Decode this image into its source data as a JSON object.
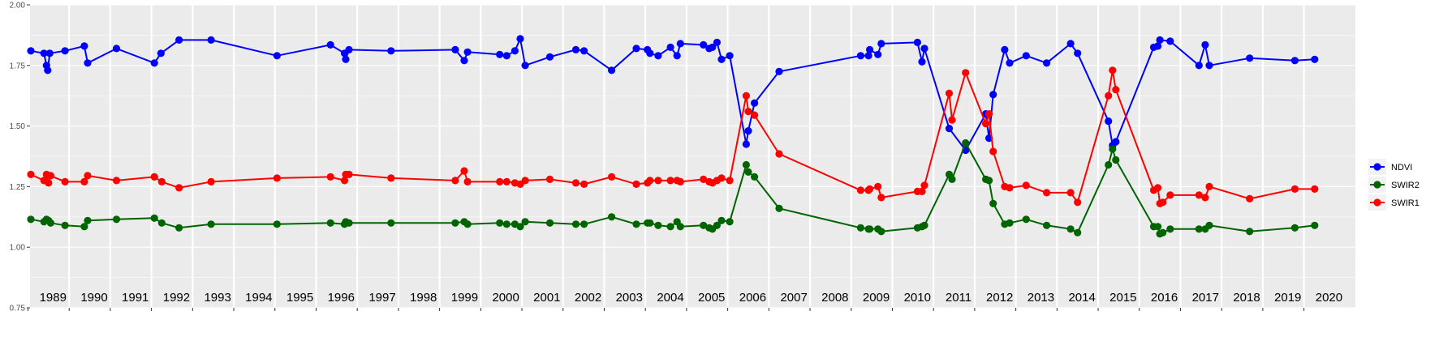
{
  "chart_data": {
    "type": "line",
    "title": "",
    "xlabel": "",
    "ylabel": "",
    "ylim": [
      0.75,
      2.0
    ],
    "yticks": [
      "0.75",
      "1.00",
      "1.25",
      "1.50",
      "1.75",
      "2.00"
    ],
    "xlim": [
      1988.6,
      2020.8
    ],
    "year_labels": [
      "1989",
      "1990",
      "1991",
      "1992",
      "1993",
      "1994",
      "1995",
      "1996",
      "1997",
      "1998",
      "1999",
      "2000",
      "2001",
      "2002",
      "2003",
      "2004",
      "2005",
      "2006",
      "2007",
      "2008",
      "2009",
      "2010",
      "2011",
      "2012",
      "2013",
      "2014",
      "2015",
      "2016",
      "2017",
      "2018",
      "2019",
      "2020"
    ],
    "grid": true,
    "legend_position": "right",
    "series": [
      {
        "name": "NDVI",
        "color": "#0000ff",
        "points": [
          [
            1988.62,
            1.81
          ],
          [
            1988.94,
            1.8
          ],
          [
            1989.0,
            1.75
          ],
          [
            1989.03,
            1.73
          ],
          [
            1989.08,
            1.8
          ],
          [
            1989.45,
            1.81
          ],
          [
            1989.92,
            1.83
          ],
          [
            1990.0,
            1.76
          ],
          [
            1990.7,
            1.82
          ],
          [
            1991.62,
            1.76
          ],
          [
            1991.78,
            1.8
          ],
          [
            1992.22,
            1.855
          ],
          [
            1993.0,
            1.855
          ],
          [
            1994.6,
            1.79
          ],
          [
            1995.9,
            1.835
          ],
          [
            1996.24,
            1.8
          ],
          [
            1996.27,
            1.775
          ],
          [
            1996.35,
            1.815
          ],
          [
            1997.37,
            1.81
          ],
          [
            1998.93,
            1.815
          ],
          [
            1999.15,
            1.77
          ],
          [
            1999.23,
            1.805
          ],
          [
            2000.01,
            1.795
          ],
          [
            2000.18,
            1.79
          ],
          [
            2000.38,
            1.81
          ],
          [
            2000.51,
            1.86
          ],
          [
            2000.63,
            1.75
          ],
          [
            2001.23,
            1.785
          ],
          [
            2001.86,
            1.815
          ],
          [
            2002.06,
            1.81
          ],
          [
            2002.73,
            1.73
          ],
          [
            2003.33,
            1.82
          ],
          [
            2003.6,
            1.815
          ],
          [
            2003.66,
            1.8
          ],
          [
            2003.86,
            1.79
          ],
          [
            2004.16,
            1.825
          ],
          [
            2004.32,
            1.79
          ],
          [
            2004.4,
            1.84
          ],
          [
            2004.96,
            1.835
          ],
          [
            2005.1,
            1.82
          ],
          [
            2005.18,
            1.825
          ],
          [
            2005.29,
            1.845
          ],
          [
            2005.4,
            1.775
          ],
          [
            2005.6,
            1.79
          ],
          [
            2006.0,
            1.425
          ],
          [
            2006.05,
            1.48
          ],
          [
            2006.2,
            1.595
          ],
          [
            2006.8,
            1.725
          ],
          [
            2008.78,
            1.79
          ],
          [
            2008.97,
            1.79
          ],
          [
            2009.0,
            1.815
          ],
          [
            2009.2,
            1.795
          ],
          [
            2009.28,
            1.84
          ],
          [
            2010.16,
            1.845
          ],
          [
            2010.27,
            1.765
          ],
          [
            2010.33,
            1.82
          ],
          [
            2010.93,
            1.49
          ],
          [
            2011.33,
            1.4
          ],
          [
            2011.82,
            1.55
          ],
          [
            2011.9,
            1.45
          ],
          [
            2012.0,
            1.63
          ],
          [
            2012.28,
            1.815
          ],
          [
            2012.4,
            1.76
          ],
          [
            2012.8,
            1.79
          ],
          [
            2013.3,
            1.76
          ],
          [
            2013.88,
            1.84
          ],
          [
            2014.05,
            1.8
          ],
          [
            2014.8,
            1.52
          ],
          [
            2014.9,
            1.42
          ],
          [
            2014.98,
            1.435
          ],
          [
            2015.9,
            1.825
          ],
          [
            2016.0,
            1.83
          ],
          [
            2016.05,
            1.855
          ],
          [
            2016.3,
            1.85
          ],
          [
            2017.0,
            1.75
          ],
          [
            2017.15,
            1.835
          ],
          [
            2017.25,
            1.75
          ],
          [
            2018.23,
            1.78
          ],
          [
            2019.33,
            1.77
          ],
          [
            2019.81,
            1.775
          ]
        ]
      },
      {
        "name": "SWIR2",
        "color": "#006400",
        "points": [
          [
            1988.62,
            1.115
          ],
          [
            1988.94,
            1.105
          ],
          [
            1989.0,
            1.115
          ],
          [
            1989.05,
            1.11
          ],
          [
            1989.1,
            1.1
          ],
          [
            1989.45,
            1.09
          ],
          [
            1989.92,
            1.085
          ],
          [
            1990.0,
            1.11
          ],
          [
            1990.7,
            1.115
          ],
          [
            1991.62,
            1.12
          ],
          [
            1991.8,
            1.1
          ],
          [
            1992.22,
            1.08
          ],
          [
            1993.0,
            1.095
          ],
          [
            1994.6,
            1.095
          ],
          [
            1995.9,
            1.1
          ],
          [
            1996.24,
            1.095
          ],
          [
            1996.27,
            1.105
          ],
          [
            1996.35,
            1.1
          ],
          [
            1997.37,
            1.1
          ],
          [
            1998.93,
            1.1
          ],
          [
            1999.15,
            1.105
          ],
          [
            1999.23,
            1.095
          ],
          [
            2000.01,
            1.1
          ],
          [
            2000.18,
            1.095
          ],
          [
            2000.38,
            1.095
          ],
          [
            2000.51,
            1.085
          ],
          [
            2000.63,
            1.105
          ],
          [
            2001.23,
            1.1
          ],
          [
            2001.86,
            1.095
          ],
          [
            2002.06,
            1.095
          ],
          [
            2002.73,
            1.125
          ],
          [
            2003.33,
            1.095
          ],
          [
            2003.6,
            1.1
          ],
          [
            2003.66,
            1.1
          ],
          [
            2003.86,
            1.09
          ],
          [
            2004.16,
            1.085
          ],
          [
            2004.32,
            1.105
          ],
          [
            2004.4,
            1.085
          ],
          [
            2004.96,
            1.09
          ],
          [
            2005.1,
            1.08
          ],
          [
            2005.18,
            1.075
          ],
          [
            2005.29,
            1.09
          ],
          [
            2005.4,
            1.11
          ],
          [
            2005.6,
            1.105
          ],
          [
            2006.0,
            1.34
          ],
          [
            2006.05,
            1.31
          ],
          [
            2006.2,
            1.29
          ],
          [
            2006.8,
            1.16
          ],
          [
            2008.78,
            1.08
          ],
          [
            2008.97,
            1.075
          ],
          [
            2009.0,
            1.075
          ],
          [
            2009.2,
            1.075
          ],
          [
            2009.28,
            1.065
          ],
          [
            2010.16,
            1.08
          ],
          [
            2010.27,
            1.085
          ],
          [
            2010.33,
            1.09
          ],
          [
            2010.93,
            1.3
          ],
          [
            2011.0,
            1.28
          ],
          [
            2011.33,
            1.43
          ],
          [
            2011.82,
            1.28
          ],
          [
            2011.9,
            1.275
          ],
          [
            2012.0,
            1.18
          ],
          [
            2012.28,
            1.095
          ],
          [
            2012.4,
            1.1
          ],
          [
            2012.8,
            1.115
          ],
          [
            2013.3,
            1.09
          ],
          [
            2013.88,
            1.075
          ],
          [
            2014.05,
            1.06
          ],
          [
            2014.8,
            1.34
          ],
          [
            2014.9,
            1.405
          ],
          [
            2014.98,
            1.36
          ],
          [
            2015.9,
            1.085
          ],
          [
            2016.0,
            1.085
          ],
          [
            2016.05,
            1.055
          ],
          [
            2016.12,
            1.06
          ],
          [
            2016.3,
            1.075
          ],
          [
            2017.0,
            1.075
          ],
          [
            2017.15,
            1.075
          ],
          [
            2017.25,
            1.09
          ],
          [
            2018.23,
            1.065
          ],
          [
            2019.33,
            1.08
          ],
          [
            2019.81,
            1.09
          ]
        ]
      },
      {
        "name": "SWIR1",
        "color": "#ff0000",
        "points": [
          [
            1988.62,
            1.3
          ],
          [
            1988.94,
            1.275
          ],
          [
            1989.0,
            1.3
          ],
          [
            1989.05,
            1.265
          ],
          [
            1989.1,
            1.295
          ],
          [
            1989.45,
            1.27
          ],
          [
            1989.92,
            1.27
          ],
          [
            1990.0,
            1.295
          ],
          [
            1990.7,
            1.275
          ],
          [
            1991.62,
            1.29
          ],
          [
            1991.8,
            1.27
          ],
          [
            1992.22,
            1.245
          ],
          [
            1993.0,
            1.27
          ],
          [
            1994.6,
            1.285
          ],
          [
            1995.9,
            1.29
          ],
          [
            1996.24,
            1.275
          ],
          [
            1996.27,
            1.3
          ],
          [
            1996.35,
            1.3
          ],
          [
            1997.37,
            1.285
          ],
          [
            1998.93,
            1.275
          ],
          [
            1999.15,
            1.315
          ],
          [
            1999.23,
            1.27
          ],
          [
            2000.01,
            1.27
          ],
          [
            2000.18,
            1.27
          ],
          [
            2000.38,
            1.265
          ],
          [
            2000.51,
            1.26
          ],
          [
            2000.63,
            1.275
          ],
          [
            2001.23,
            1.28
          ],
          [
            2001.86,
            1.265
          ],
          [
            2002.06,
            1.26
          ],
          [
            2002.73,
            1.29
          ],
          [
            2003.33,
            1.26
          ],
          [
            2003.6,
            1.265
          ],
          [
            2003.66,
            1.275
          ],
          [
            2003.86,
            1.275
          ],
          [
            2004.16,
            1.275
          ],
          [
            2004.32,
            1.275
          ],
          [
            2004.4,
            1.27
          ],
          [
            2004.96,
            1.28
          ],
          [
            2005.1,
            1.27
          ],
          [
            2005.18,
            1.265
          ],
          [
            2005.29,
            1.275
          ],
          [
            2005.4,
            1.285
          ],
          [
            2005.6,
            1.275
          ],
          [
            2006.0,
            1.625
          ],
          [
            2006.05,
            1.56
          ],
          [
            2006.2,
            1.545
          ],
          [
            2006.8,
            1.385
          ],
          [
            2008.78,
            1.235
          ],
          [
            2008.97,
            1.235
          ],
          [
            2009.0,
            1.24
          ],
          [
            2009.2,
            1.25
          ],
          [
            2009.28,
            1.205
          ],
          [
            2010.16,
            1.23
          ],
          [
            2010.27,
            1.23
          ],
          [
            2010.33,
            1.255
          ],
          [
            2010.93,
            1.635
          ],
          [
            2011.0,
            1.525
          ],
          [
            2011.33,
            1.72
          ],
          [
            2011.82,
            1.51
          ],
          [
            2011.9,
            1.55
          ],
          [
            2012.0,
            1.395
          ],
          [
            2012.28,
            1.25
          ],
          [
            2012.4,
            1.245
          ],
          [
            2012.8,
            1.255
          ],
          [
            2013.3,
            1.225
          ],
          [
            2013.88,
            1.225
          ],
          [
            2014.05,
            1.185
          ],
          [
            2014.8,
            1.625
          ],
          [
            2014.9,
            1.73
          ],
          [
            2014.98,
            1.65
          ],
          [
            2015.9,
            1.235
          ],
          [
            2016.0,
            1.245
          ],
          [
            2016.05,
            1.18
          ],
          [
            2016.12,
            1.185
          ],
          [
            2016.3,
            1.215
          ],
          [
            2017.0,
            1.215
          ],
          [
            2017.15,
            1.205
          ],
          [
            2017.25,
            1.25
          ],
          [
            2018.23,
            1.2
          ],
          [
            2019.33,
            1.24
          ],
          [
            2019.81,
            1.24
          ]
        ]
      }
    ]
  }
}
